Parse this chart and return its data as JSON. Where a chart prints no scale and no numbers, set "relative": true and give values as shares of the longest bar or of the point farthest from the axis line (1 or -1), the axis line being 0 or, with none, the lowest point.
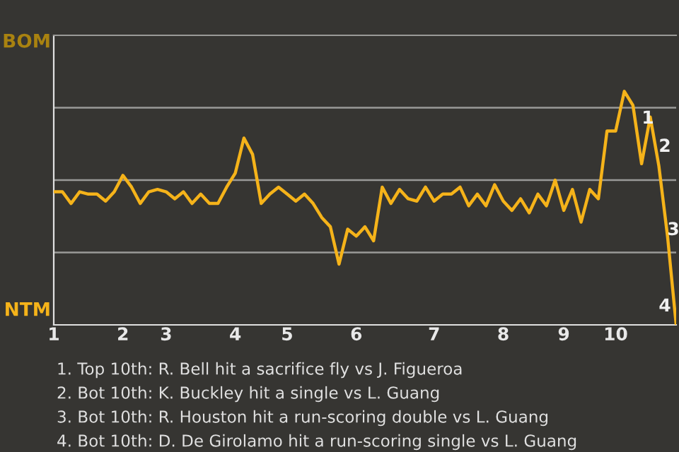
{
  "chart_data": {
    "type": "line",
    "relative": true,
    "categories": [
      "1",
      null,
      null,
      null,
      null,
      null,
      null,
      null,
      "2",
      null,
      null,
      null,
      null,
      "3",
      null,
      null,
      null,
      null,
      null,
      null,
      null,
      "4",
      null,
      null,
      null,
      null,
      null,
      "5",
      null,
      null,
      null,
      null,
      null,
      null,
      null,
      "6",
      null,
      null,
      null,
      null,
      null,
      null,
      null,
      null,
      "7",
      null,
      null,
      null,
      null,
      null,
      null,
      null,
      "8",
      null,
      null,
      null,
      null,
      null,
      null,
      "9",
      null,
      null,
      null,
      null,
      null,
      "10",
      null,
      null,
      null,
      null,
      null,
      null,
      null
    ],
    "series": [
      {
        "values": [
          0.57,
          0.57,
          0.52,
          0.57,
          0.56,
          0.56,
          0.53,
          0.57,
          0.64,
          0.59,
          0.52,
          0.57,
          0.58,
          0.57,
          0.54,
          0.57,
          0.52,
          0.56,
          0.52,
          0.52,
          0.59,
          0.65,
          0.8,
          0.73,
          0.52,
          0.56,
          0.59,
          0.56,
          0.53,
          0.56,
          0.52,
          0.46,
          0.42,
          0.26,
          0.41,
          0.38,
          0.42,
          0.36,
          0.59,
          0.52,
          0.58,
          0.54,
          0.53,
          0.59,
          0.53,
          0.56,
          0.56,
          0.59,
          0.51,
          0.56,
          0.51,
          0.6,
          0.53,
          0.49,
          0.54,
          0.48,
          0.56,
          0.51,
          0.62,
          0.49,
          0.58,
          0.44,
          0.58,
          0.54,
          0.83,
          0.83,
          1.0,
          0.94,
          0.69,
          0.89,
          0.68,
          0.38,
          0.0
        ],
        "color": "#f5b31a"
      }
    ],
    "grid": "y",
    "annotations": [
      "1",
      "2",
      "3",
      "4",
      "BOM",
      "NTM",
      "1. Top 10th: R. Bell hit a sacrifice fly vs J. Figueroa",
      "2. Bot 10th: K. Buckley hit a single vs L. Guang",
      "3. Bot 10th: R. Houston hit a run-scoring double vs L. Guang",
      "4. Bot 10th: D. De Girolamo hit a run-scoring single vs L. Guang"
    ]
  }
}
